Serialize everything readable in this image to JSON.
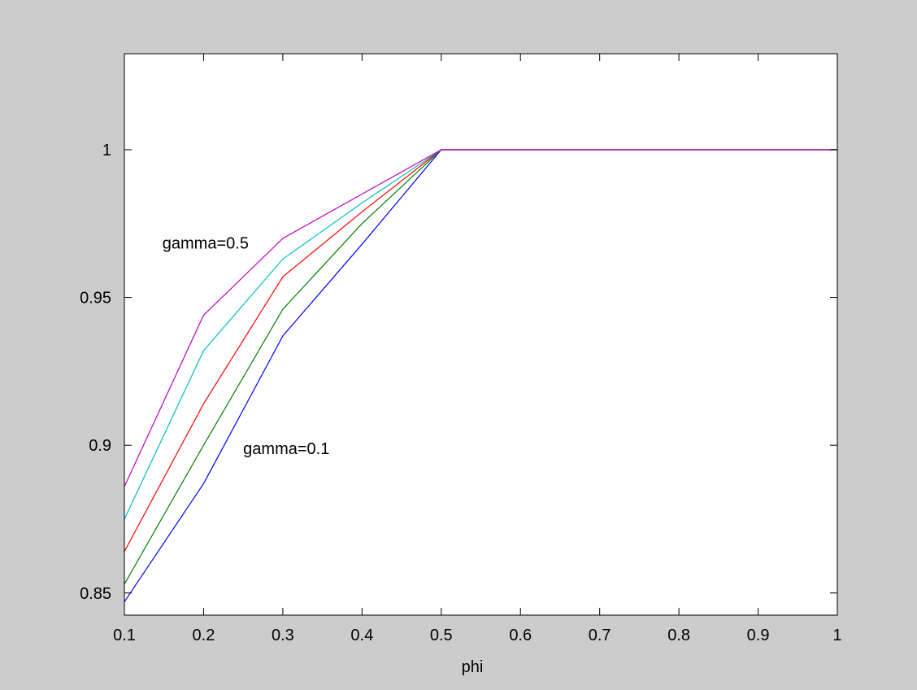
{
  "chart_data": {
    "type": "line",
    "title": "",
    "xlabel": "phi",
    "ylabel": "",
    "xlim": [
      0.1,
      1.0
    ],
    "ylim": [
      0.8425,
      1.0325
    ],
    "grid": false,
    "x": [
      0.1,
      0.2,
      0.3,
      0.4,
      0.5,
      0.6,
      0.7,
      0.8,
      0.9,
      1.0
    ],
    "x_ticks": [
      0.1,
      0.2,
      0.3,
      0.4,
      0.5,
      0.6,
      0.7,
      0.8,
      0.9,
      1.0
    ],
    "x_tick_labels": [
      "0.1",
      "0.2",
      "0.3",
      "0.4",
      "0.5",
      "0.6",
      "0.7",
      "0.8",
      "0.9",
      "1"
    ],
    "y_ticks": [
      0.85,
      0.9,
      0.95,
      1.0
    ],
    "y_tick_labels": [
      "0.85",
      "0.9",
      "0.95",
      "1"
    ],
    "series": [
      {
        "color": "#0000ff",
        "values": [
          0.847,
          0.887,
          0.937,
          0.968,
          1.0,
          1.0,
          1.0,
          1.0,
          1.0,
          1.0
        ]
      },
      {
        "color": "#008000",
        "values": [
          0.853,
          0.9,
          0.946,
          0.975,
          1.0,
          1.0,
          1.0,
          1.0,
          1.0,
          1.0
        ]
      },
      {
        "color": "#ff0000",
        "values": [
          0.864,
          0.914,
          0.957,
          0.979,
          1.0,
          1.0,
          1.0,
          1.0,
          1.0,
          1.0
        ]
      },
      {
        "color": "#00bfbf",
        "values": [
          0.875,
          0.932,
          0.963,
          0.982,
          1.0,
          1.0,
          1.0,
          1.0,
          1.0,
          1.0
        ]
      },
      {
        "color": "#bf00bf",
        "values": [
          0.886,
          0.944,
          0.97,
          0.985,
          1.0,
          1.0,
          1.0,
          1.0,
          1.0,
          1.0
        ]
      }
    ],
    "annotations": [
      {
        "text": "gamma=0.5",
        "x": 0.148,
        "y": 0.9685
      },
      {
        "text": "gamma=0.1",
        "x": 0.25,
        "y": 0.899
      }
    ]
  }
}
